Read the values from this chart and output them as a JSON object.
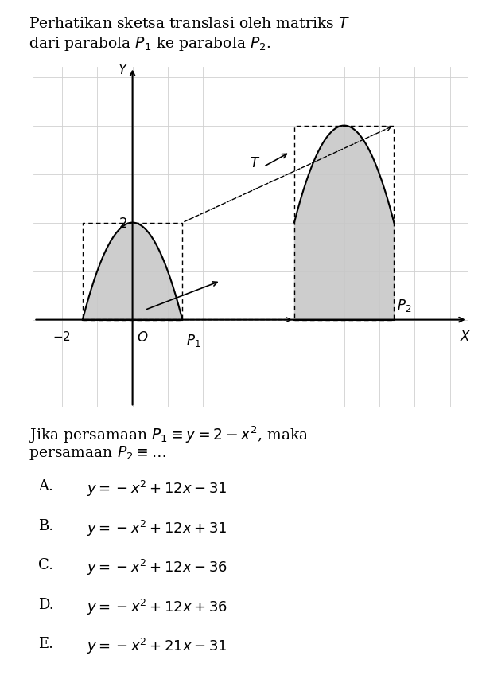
{
  "title_line1": "Perhatikan sketsa translasi oleh matriks $T$",
  "title_line2": "dari parabola $P_1$ ke parabola $P_2$.",
  "question_line1": "Jika persamaan $P_1 \\equiv y = 2 - x^2$, maka",
  "question_line2": "persamaan $P_2 \\equiv \\ldots$",
  "option_letters": [
    "A.",
    "B.",
    "C.",
    "D.",
    "E."
  ],
  "option_exprs": [
    "$y = -x^2 + 12x - 31$",
    "$y = -x^2 + 12x + 31$",
    "$y = -x^2 + 12x - 36$",
    "$y = -x^2 + 12x + 36$",
    "$y = -x^2 + 21x - 31$"
  ],
  "fill_color": "#c8c8c8",
  "grid_color": "#d0d0d0",
  "bg_color": "#ffffff",
  "xlim": [
    -2.8,
    9.5
  ],
  "ylim": [
    -1.8,
    5.2
  ],
  "shift_x": 6,
  "shift_y": 2,
  "font_size_title": 13.5,
  "font_size_body": 13.5,
  "font_size_options": 13.0,
  "font_size_axis_labels": 12
}
